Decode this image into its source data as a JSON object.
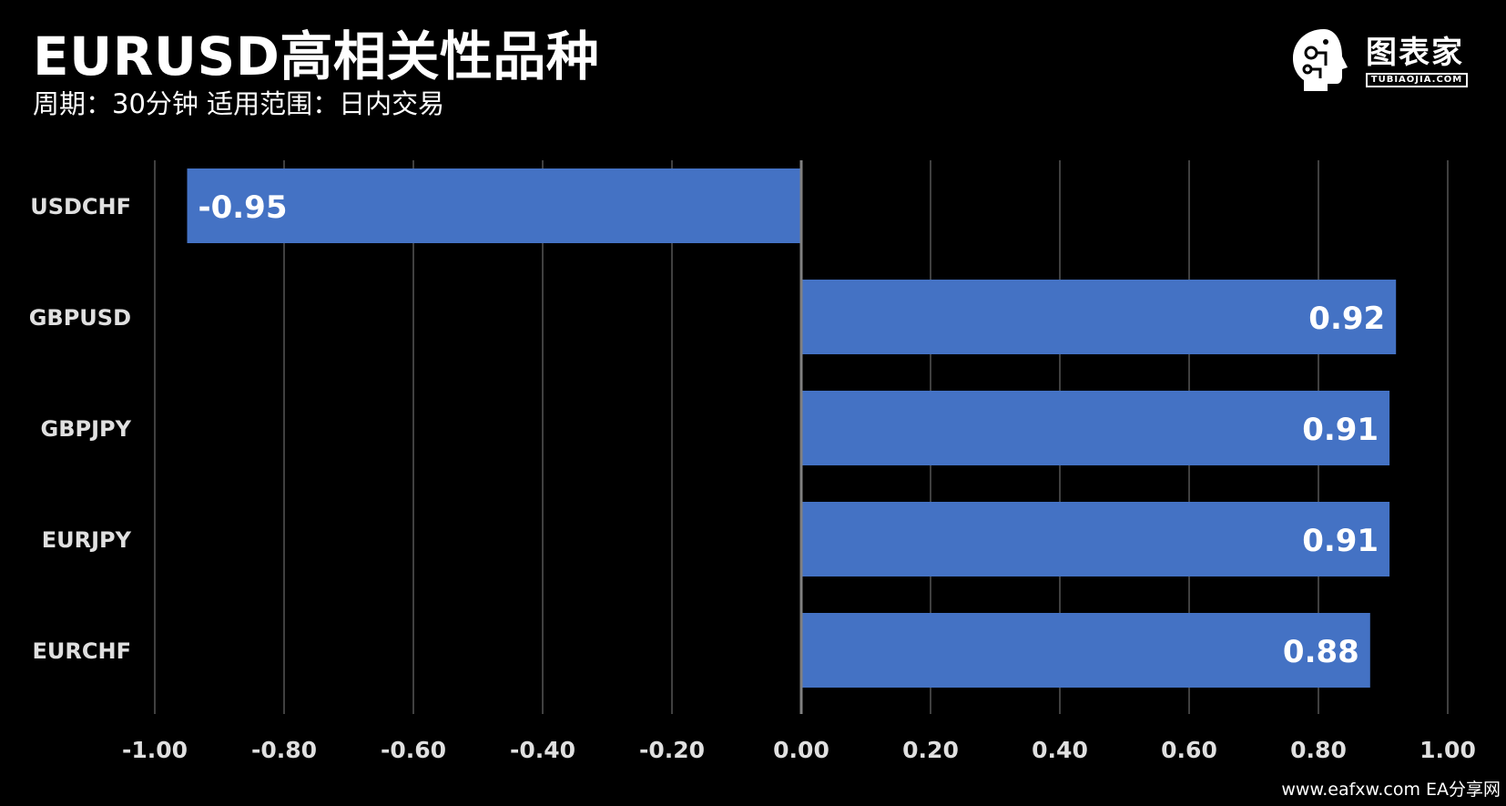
{
  "header": {
    "title": "EURUSD高相关性品种",
    "subtitle": "周期：30分钟  适用范围：日内交易"
  },
  "logo": {
    "name": "图表家",
    "sub": "TUBIAOJIA.COM",
    "icon": "head-circuit-icon"
  },
  "footer": {
    "watermark": "www.eafxw.com    EA分享网"
  },
  "colors": {
    "background": "#000000",
    "bar": "#4472C4",
    "grid": "#404040",
    "zero_line": "#808080",
    "text": "#ffffff",
    "tick_text": "#e0e0e0"
  },
  "chart_data": {
    "type": "bar",
    "orientation": "horizontal",
    "title": "EURUSD高相关性品种",
    "subtitle": "周期：30分钟  适用范围：日内交易",
    "categories": [
      "USDCHF",
      "GBPUSD",
      "GBPJPY",
      "EURJPY",
      "EURCHF"
    ],
    "values": [
      -0.95,
      0.92,
      0.91,
      0.91,
      0.88
    ],
    "data_labels": [
      "-0.95",
      "0.92",
      "0.91",
      "0.91",
      "0.88"
    ],
    "xlim": [
      -1.0,
      1.0
    ],
    "x_ticks": [
      -1.0,
      -0.8,
      -0.6,
      -0.4,
      -0.2,
      0.0,
      0.2,
      0.4,
      0.6,
      0.8,
      1.0
    ],
    "x_tick_labels": [
      "-1.00",
      "-0.80",
      "-0.60",
      "-0.40",
      "-0.20",
      "0.00",
      "0.20",
      "0.40",
      "0.60",
      "0.80",
      "1.00"
    ],
    "grid": "vertical",
    "legend": "none"
  }
}
